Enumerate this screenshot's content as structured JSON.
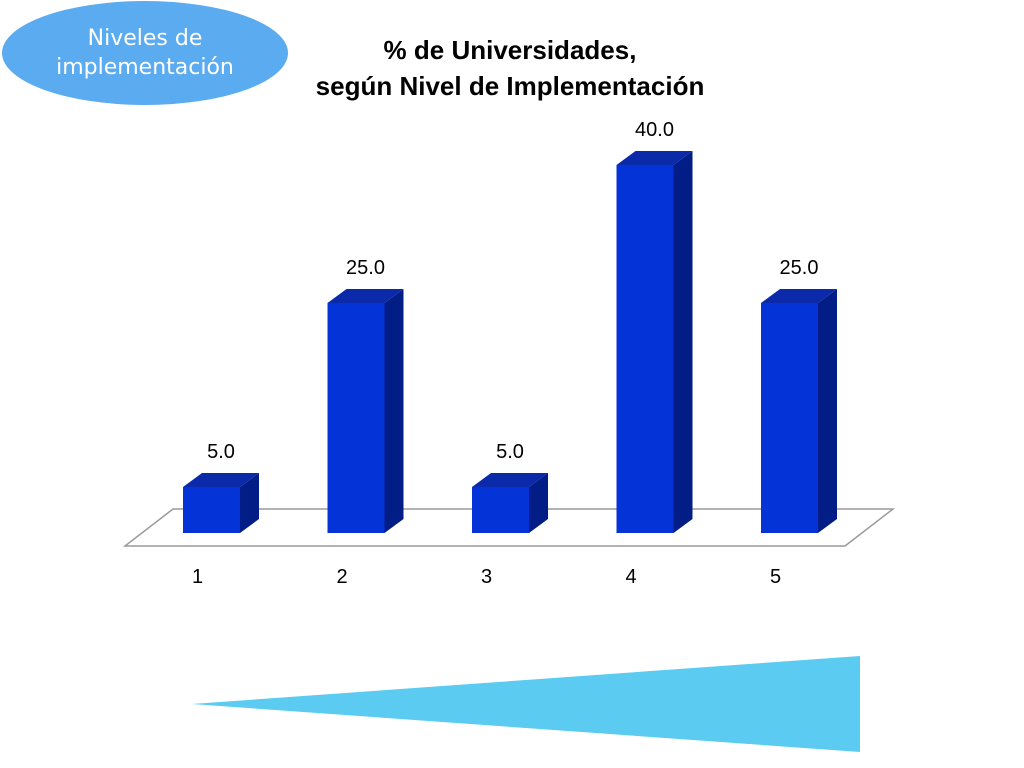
{
  "badge": {
    "text": "Niveles de\nimplementación",
    "color": "#5aabf0"
  },
  "title_lines": [
    "% de Universidades,",
    "según Nivel de Implementación"
  ],
  "chart_data": {
    "type": "bar",
    "title": "% de Universidades, según Nivel de Implementación",
    "categories": [
      "1",
      "2",
      "3",
      "4",
      "5"
    ],
    "values": [
      5.0,
      25.0,
      5.0,
      40.0,
      25.0
    ],
    "value_labels": [
      "5.0",
      "25.0",
      "5.0",
      "40.0",
      "25.0"
    ],
    "xlabel": "",
    "ylabel": "",
    "ylim": [
      0,
      40
    ],
    "grid": false,
    "style": "3d-columns",
    "colors": {
      "front": "#0433d8",
      "side": "#021d86",
      "top": "#0a2aa9"
    }
  },
  "wedge": {
    "color": "#5ccbf2"
  }
}
